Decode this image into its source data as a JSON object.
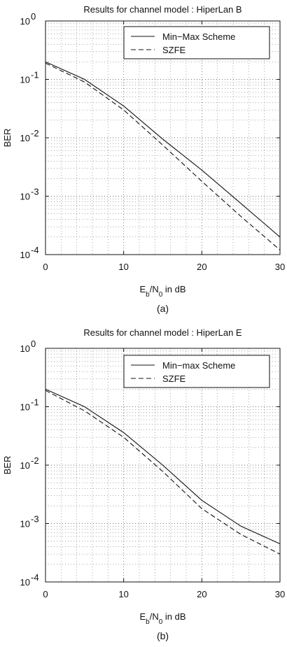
{
  "chart_data": [
    {
      "type": "line",
      "title": "Results for channel model : HiperLan B",
      "xlabel": "E_b/N_0 in dB",
      "ylabel": "BER",
      "caption": "(a)",
      "xlim": [
        0,
        30
      ],
      "ylim": [
        0.0001,
        1
      ],
      "yscale": "log",
      "grid": true,
      "legend_position": "top-right",
      "x_ticks": [
        "0",
        "10",
        "20",
        "30"
      ],
      "y_ticks": [
        {
          "base": "10",
          "exp": "0"
        },
        {
          "base": "10",
          "exp": "-1"
        },
        {
          "base": "10",
          "exp": "-2"
        },
        {
          "base": "10",
          "exp": "-3"
        },
        {
          "base": "10",
          "exp": "-4"
        }
      ],
      "x": [
        0,
        5,
        10,
        15,
        20,
        25,
        30
      ],
      "series": [
        {
          "name": "Min−Max Scheme",
          "style": "solid",
          "values": [
            0.2,
            0.1,
            0.035,
            0.0095,
            0.0028,
            0.00075,
            0.0002
          ]
        },
        {
          "name": "SZFE",
          "style": "dashed",
          "values": [
            0.19,
            0.09,
            0.03,
            0.0075,
            0.0018,
            0.00045,
            0.00012
          ]
        }
      ]
    },
    {
      "type": "line",
      "title": "Results for channel model : HiperLan E",
      "xlabel": "E_b/N_0 in dB",
      "ylabel": "BER",
      "caption": "(b)",
      "xlim": [
        0,
        30
      ],
      "ylim": [
        0.0001,
        1
      ],
      "yscale": "log",
      "grid": true,
      "legend_position": "top-right",
      "x_ticks": [
        "0",
        "10",
        "20",
        "30"
      ],
      "y_ticks": [
        {
          "base": "10",
          "exp": "0"
        },
        {
          "base": "10",
          "exp": "-1"
        },
        {
          "base": "10",
          "exp": "-2"
        },
        {
          "base": "10",
          "exp": "-3"
        },
        {
          "base": "10",
          "exp": "-4"
        }
      ],
      "x": [
        0,
        5,
        10,
        15,
        20,
        25,
        30
      ],
      "series": [
        {
          "name": "Min−max Scheme",
          "style": "solid",
          "values": [
            0.2,
            0.1,
            0.036,
            0.01,
            0.0025,
            0.0009,
            0.00045
          ]
        },
        {
          "name": "SZFE",
          "style": "dashed",
          "values": [
            0.19,
            0.085,
            0.03,
            0.0078,
            0.0018,
            0.00065,
            0.0003
          ]
        }
      ]
    }
  ]
}
